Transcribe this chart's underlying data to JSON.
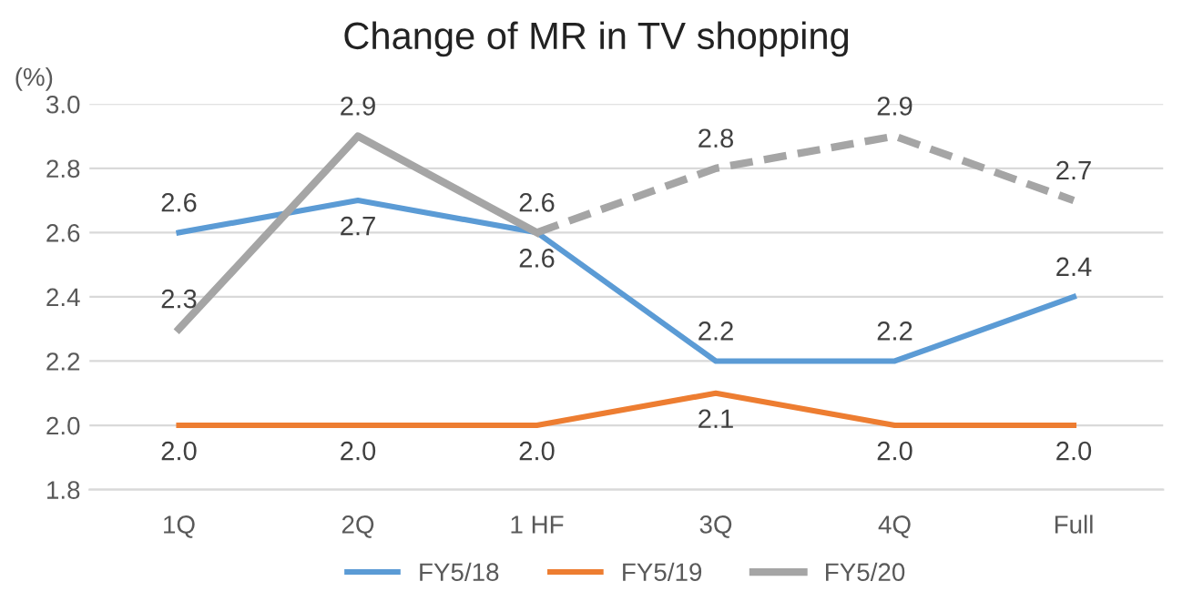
{
  "chart_data": {
    "type": "line",
    "title": "Change of MR in TV shopping",
    "ylabel": "(%)",
    "categories": [
      "1Q",
      "2Q",
      "1 HF",
      "3Q",
      "4Q",
      "Full"
    ],
    "ylim": [
      1.8,
      3.0
    ],
    "yticks": [
      1.8,
      {
        "value": 2,
        "label": "2.0"
      },
      2.2,
      2.4,
      2.6,
      2.8,
      {
        "value": 3,
        "label": "3.0"
      }
    ],
    "grid": "y",
    "legend": "bottom",
    "data_labels": true,
    "marker": "none",
    "series": [
      {
        "name": "FY5/18",
        "color": "#5b9bd5",
        "values": [
          2.6,
          2.7,
          2.6,
          2.2,
          2.2,
          2.4
        ],
        "value_labels": [
          "2.6",
          "2.7",
          "2.6",
          "2.2",
          "2.2",
          "2.4"
        ]
      },
      {
        "name": "FY5/19",
        "color": "#ed7d31",
        "values": [
          2.0,
          2.0,
          2.0,
          2.1,
          2.0,
          2.0
        ],
        "value_labels": [
          "2.0",
          "2.0",
          "2.0",
          "2.1",
          "2.0",
          "2.0"
        ]
      },
      {
        "name": "FY5/20",
        "color": "#a5a5a5",
        "values": [
          2.3,
          2.9,
          2.6,
          null,
          null,
          null
        ],
        "value_labels": [
          "2.3",
          "2.9",
          "2.6",
          null,
          null,
          null
        ]
      },
      {
        "color": "#a5a5a5",
        "line_style": "dashed",
        "values": [
          null,
          null,
          2.6,
          2.8,
          2.9,
          2.7
        ],
        "value_labels": [
          null,
          null,
          null,
          "2.8",
          "2.9",
          "2.7"
        ]
      }
    ]
  }
}
